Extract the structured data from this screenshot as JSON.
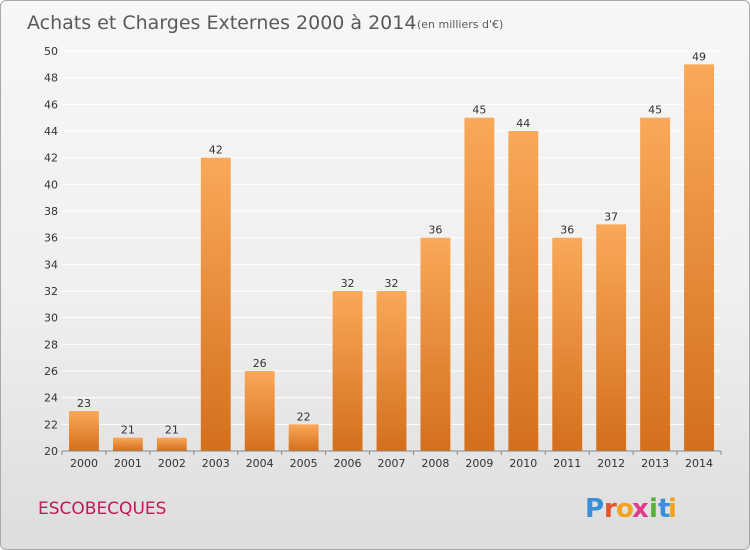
{
  "title": "Achats et Charges Externes 2000 à 2014",
  "unit": "(en milliers d'€)",
  "commune": "ESCOBECQUES",
  "logo": {
    "letters": [
      "P",
      "r",
      "o",
      "x",
      "i",
      "t",
      "i"
    ],
    "colors": [
      "#3a8fd6",
      "#e2542b",
      "#f3a31c",
      "#e03c8a",
      "#56b03a",
      "#3a8fd6",
      "#f3a31c"
    ]
  },
  "colors": {
    "bar_light": "#f9a959",
    "bar_dark": "#d46f1c"
  },
  "chart_data": {
    "type": "bar",
    "categories": [
      "2000",
      "2001",
      "2002",
      "2003",
      "2004",
      "2005",
      "2006",
      "2007",
      "2008",
      "2009",
      "2010",
      "2011",
      "2012",
      "2013",
      "2014"
    ],
    "values": [
      23,
      21,
      21,
      42,
      26,
      22,
      32,
      32,
      36,
      45,
      44,
      36,
      37,
      45,
      49
    ],
    "title": "Achats et Charges Externes 2000 à 2014",
    "xlabel": "",
    "ylabel": "",
    "ylim": [
      20,
      50
    ],
    "yticks": [
      20,
      22,
      24,
      26,
      28,
      30,
      32,
      34,
      36,
      38,
      40,
      42,
      44,
      46,
      48,
      50
    ],
    "grid": true,
    "data_labels": true
  }
}
